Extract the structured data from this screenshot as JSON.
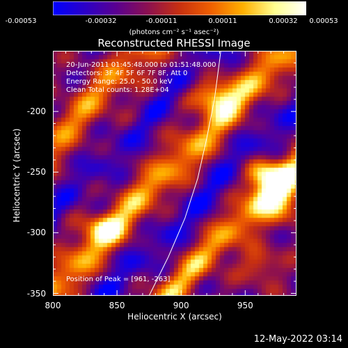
{
  "colorbar": {
    "colors": [
      "#0000ff",
      "#2b00c8",
      "#5a0090",
      "#8c1050",
      "#c83010",
      "#f06000",
      "#ffb000",
      "#ffff90",
      "#ffffff"
    ],
    "ticks": [
      "-0.00053",
      "-0.00032",
      "-0.00011",
      "0.00011",
      "0.00032",
      "0.00053"
    ],
    "units": "(photons cm⁻² s⁻¹ asec⁻²)"
  },
  "chart_data": {
    "type": "heatmap",
    "title": "Reconstructed RHESSI Image",
    "xlabel": "Heliocentric X (arcsec)",
    "ylabel": "Heliocentric Y (arcsec)",
    "xlim": [
      800,
      990
    ],
    "ylim": [
      -352,
      -150
    ],
    "x_ticks": [
      800,
      850,
      900,
      950
    ],
    "y_ticks": [
      -350,
      -300,
      -250,
      -200
    ],
    "colorbar_range": [
      -0.00053,
      0.00053
    ],
    "limb_curve": [
      [
        875,
        -352
      ],
      [
        890,
        -320
      ],
      [
        903,
        -288
      ],
      [
        913,
        -255
      ],
      [
        920,
        -222
      ],
      [
        926,
        -190
      ],
      [
        931,
        -150
      ]
    ],
    "bright_sources": [
      {
        "x": 925,
        "y": -185,
        "v": 1.0,
        "sx": 16,
        "sy": 14
      },
      {
        "x": 975,
        "y": -268,
        "v": 1.0,
        "sx": 18,
        "sy": 22
      },
      {
        "x": 962,
        "y": -250,
        "v": 0.85,
        "sx": 14,
        "sy": 12
      },
      {
        "x": 838,
        "y": -295,
        "v": 0.7,
        "sx": 16,
        "sy": 12
      },
      {
        "x": 960,
        "y": -325,
        "v": 0.6,
        "sx": 14,
        "sy": 14
      }
    ]
  },
  "info": {
    "time": "20-Jun-2011 01:45:48.000 to 01:51:48.000",
    "detectors": "Detectors: 3F 4F 5F 6F 7F 8F, Att 0",
    "energy": "Energy Range: 25.0 - 50.0 keV",
    "clean": "Clean     Total counts: 1.28E+04",
    "peak": "Position of Peak = [961, -263]"
  },
  "footer": {
    "date": "12-May-2022 03:14"
  }
}
